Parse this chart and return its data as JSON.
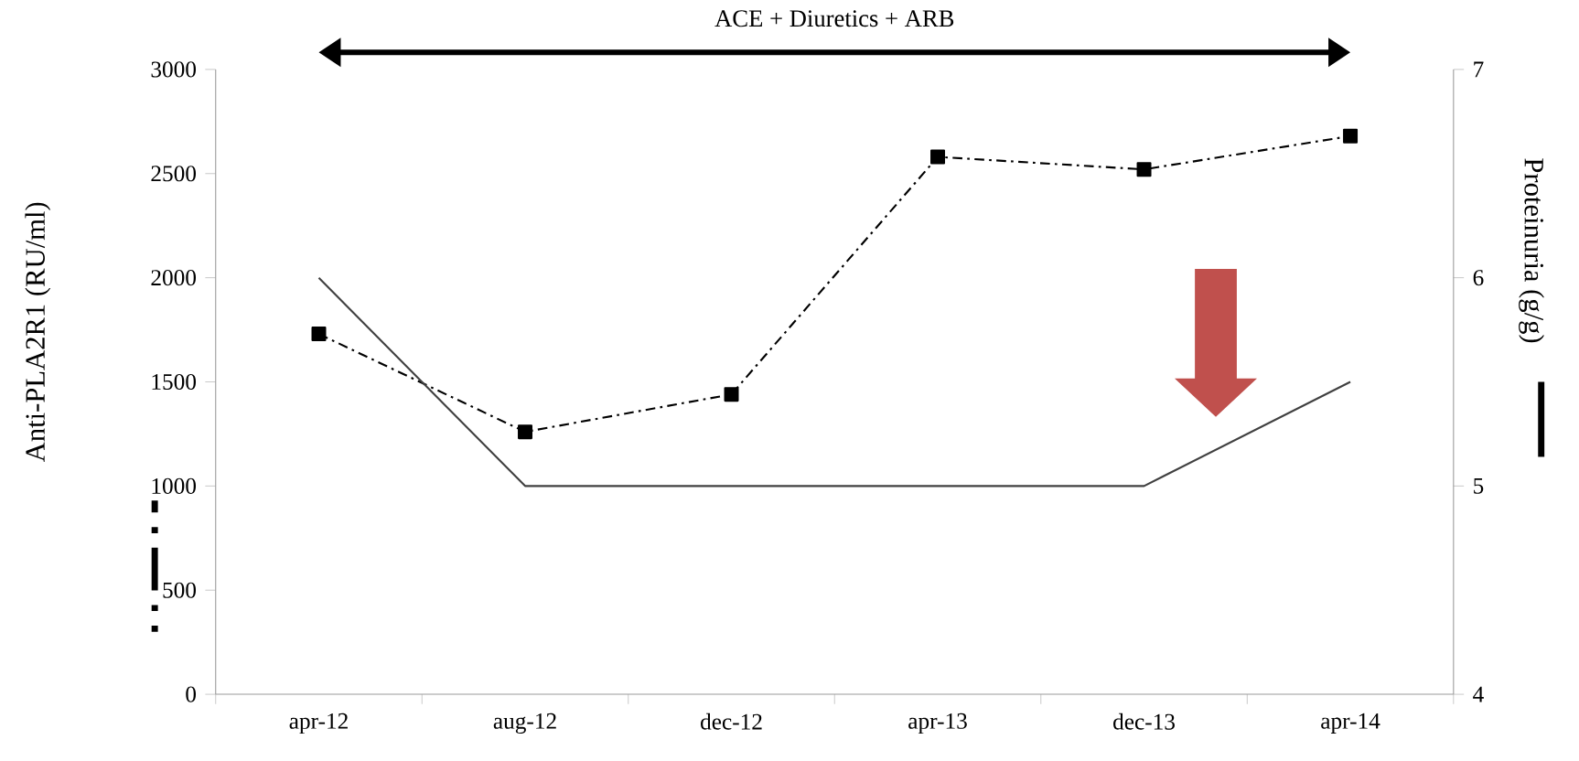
{
  "chart_data": {
    "type": "line",
    "annotations": [
      "ACE + Diuretics + ARB"
    ],
    "ylabel": "Anti-PLA2R1 (RU/ml)",
    "y2label": "Proteinuria (g/g)",
    "categories": [
      "apr-12",
      "aug-12",
      "dec-12",
      "apr-13",
      "dec-13",
      "apr-14"
    ],
    "series": [
      {
        "color": "#000000",
        "values": [
          1730,
          1260,
          1440,
          2580,
          2520,
          2680
        ],
        "marker": "square",
        "line_style": "dashed"
      },
      {
        "color": "#404040",
        "values": [
          6,
          5,
          5,
          5,
          5,
          5.5
        ],
        "axis": "y2",
        "marker": "none",
        "line_style": "solid"
      }
    ],
    "ylim": [
      0,
      3000
    ],
    "yticks": [
      0,
      500,
      1000,
      1500,
      2000,
      2500,
      3000
    ],
    "y2lim": [
      4,
      7
    ],
    "y2ticks": [
      4,
      5,
      6,
      7
    ]
  }
}
